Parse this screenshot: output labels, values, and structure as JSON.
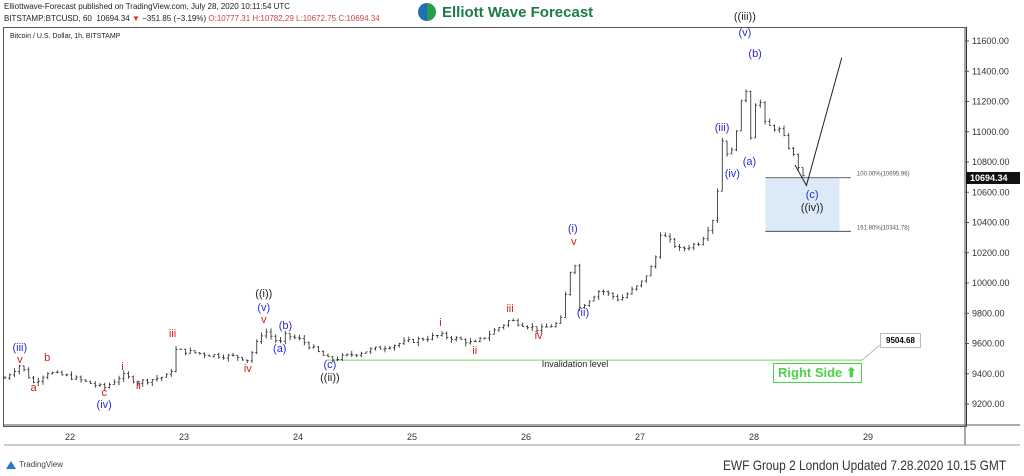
{
  "header": {
    "published": "Elliottwave-Forecast published on TradingView.com, July 28, 2020 10:11:54 UTC",
    "symbol": "BITSTAMP:BTCUSD, 60",
    "last": "10694.34",
    "change_arrow": "▼",
    "change": "−351.85 (−3.19%)",
    "open": "O:10777.31",
    "high": "H:10782.29",
    "low": "L:10672.75",
    "close": "C:10694.34"
  },
  "logo": {
    "text": "Elliott Wave Forecast"
  },
  "footer": {
    "tradingview": "TradingView",
    "updated": "EWF Group 2 London Updated 7.28.2020 10.15 GMT"
  },
  "colors": {
    "blue": "#2b2bd6",
    "red": "#d0201a",
    "black": "#222222",
    "invalidation": "#7ed957",
    "fib_box": "#dce9f6",
    "right_side": "#4ad24a"
  },
  "chart_data": {
    "type": "ohlc-bars",
    "title": "Bitcoin / U.S. Dollar, 1h, BITSTAMP",
    "x_ticks": [
      "22",
      "23",
      "24",
      "25",
      "26",
      "27",
      "28",
      "29"
    ],
    "x_tick_values": [
      22,
      23,
      24,
      25,
      26,
      27,
      28,
      29
    ],
    "xlim": [
      21.4,
      29.8
    ],
    "y_ticks": [
      "11600.00",
      "11400.00",
      "11200.00",
      "11000.00",
      "10800.00",
      "10600.00",
      "10400.00",
      "10200.00",
      "10000.00",
      "9800.00",
      "9600.00",
      "9400.00",
      "9200.00"
    ],
    "ylim": [
      9070,
      11730
    ],
    "last_price": "10694.34",
    "path": [
      [
        21.43,
        9372
      ],
      [
        21.56,
        9458
      ],
      [
        21.68,
        9340
      ],
      [
        21.8,
        9410
      ],
      [
        22.0,
        9380
      ],
      [
        22.3,
        9307
      ],
      [
        22.46,
        9390
      ],
      [
        22.6,
        9345
      ],
      [
        22.88,
        9390
      ],
      [
        22.92,
        9558
      ],
      [
        23.23,
        9525
      ],
      [
        23.49,
        9510
      ],
      [
        23.56,
        9490
      ],
      [
        23.7,
        9690
      ],
      [
        23.84,
        9600
      ],
      [
        23.89,
        9655
      ],
      [
        24.02,
        9625
      ],
      [
        24.28,
        9490
      ],
      [
        24.54,
        9540
      ],
      [
        24.89,
        9600
      ],
      [
        25.25,
        9655
      ],
      [
        25.55,
        9600
      ],
      [
        25.86,
        9755
      ],
      [
        26.12,
        9690
      ],
      [
        26.3,
        9740
      ],
      [
        26.42,
        10200
      ],
      [
        26.47,
        9835
      ],
      [
        26.65,
        9955
      ],
      [
        26.82,
        9890
      ],
      [
        27.0,
        9990
      ],
      [
        27.13,
        10140
      ],
      [
        27.18,
        10330
      ],
      [
        27.35,
        10220
      ],
      [
        27.53,
        10270
      ],
      [
        27.66,
        10450
      ],
      [
        27.72,
        10945
      ],
      [
        27.79,
        10815
      ],
      [
        27.88,
        11140
      ],
      [
        27.92,
        11395
      ],
      [
        27.96,
        10910
      ],
      [
        28.03,
        11275
      ],
      [
        28.1,
        11045
      ],
      [
        28.23,
        11010
      ],
      [
        28.36,
        10820
      ],
      [
        28.46,
        10645
      ]
    ],
    "projection": [
      [
        28.46,
        10645
      ],
      [
        28.77,
        11490
      ]
    ],
    "fib": {
      "start_day": 28.1,
      "end_day": 28.75,
      "line_end_day": 28.85,
      "levels": [
        {
          "label": "100.00%(10695.96)",
          "price": 10695.96
        },
        {
          "label": "161.80%(10341.78)",
          "price": 10341.78
        }
      ]
    },
    "invalidation": {
      "label": "Invalidation level",
      "price": 9490,
      "from_day": 24.25,
      "to_day": 28.95,
      "label_day": 26.43,
      "label_price": 9445
    },
    "price_label": "9504.68",
    "right_side": "Right Side ⬆",
    "annotations": [
      {
        "text": "((iii))",
        "color": "black",
        "day": 27.92,
        "price": 11739
      },
      {
        "text": "(v)",
        "color": "blue",
        "day": 27.92,
        "price": 11633
      },
      {
        "text": "(b)",
        "color": "blue",
        "day": 28.01,
        "price": 11494
      },
      {
        "text": "(iii)",
        "color": "blue",
        "day": 27.72,
        "price": 11005
      },
      {
        "text": "(a)",
        "color": "blue",
        "day": 27.96,
        "price": 10780
      },
      {
        "text": "(iv)",
        "color": "blue",
        "day": 27.81,
        "price": 10700
      },
      {
        "text": "(c)",
        "color": "blue",
        "day": 28.51,
        "price": 10562
      },
      {
        "text": "((iv))",
        "color": "black",
        "day": 28.51,
        "price": 10476
      },
      {
        "text": "(i)",
        "color": "blue",
        "day": 26.41,
        "price": 10337
      },
      {
        "text": "v",
        "color": "red",
        "day": 26.42,
        "price": 10250
      },
      {
        "text": "(ii)",
        "color": "blue",
        "day": 26.5,
        "price": 9782
      },
      {
        "text": "iii",
        "color": "red",
        "day": 25.86,
        "price": 9809
      },
      {
        "text": "iv",
        "color": "red",
        "day": 26.11,
        "price": 9630
      },
      {
        "text": "i",
        "color": "red",
        "day": 25.25,
        "price": 9716
      },
      {
        "text": "ii",
        "color": "red",
        "day": 25.55,
        "price": 9531
      },
      {
        "text": "((i))",
        "color": "black",
        "day": 23.7,
        "price": 9908
      },
      {
        "text": "(v)",
        "color": "blue",
        "day": 23.7,
        "price": 9815
      },
      {
        "text": "v",
        "color": "red",
        "day": 23.7,
        "price": 9736
      },
      {
        "text": "(b)",
        "color": "blue",
        "day": 23.89,
        "price": 9696
      },
      {
        "text": "(a)",
        "color": "blue",
        "day": 23.84,
        "price": 9544
      },
      {
        "text": "iv",
        "color": "red",
        "day": 23.56,
        "price": 9412
      },
      {
        "text": "iii",
        "color": "red",
        "day": 22.9,
        "price": 9643
      },
      {
        "text": "(c)",
        "color": "blue",
        "day": 24.28,
        "price": 9439
      },
      {
        "text": "((ii))",
        "color": "black",
        "day": 24.28,
        "price": 9353
      },
      {
        "text": "(iii)",
        "color": "blue",
        "day": 21.56,
        "price": 9551
      },
      {
        "text": "v",
        "color": "red",
        "day": 21.56,
        "price": 9472
      },
      {
        "text": "b",
        "color": "red",
        "day": 21.8,
        "price": 9485
      },
      {
        "text": "a",
        "color": "red",
        "day": 21.68,
        "price": 9287
      },
      {
        "text": "c",
        "color": "red",
        "day": 22.3,
        "price": 9253
      },
      {
        "text": "(iv)",
        "color": "blue",
        "day": 22.3,
        "price": 9174
      },
      {
        "text": "i",
        "color": "red",
        "day": 22.46,
        "price": 9425
      },
      {
        "text": "ii",
        "color": "red",
        "day": 22.6,
        "price": 9300
      }
    ]
  }
}
